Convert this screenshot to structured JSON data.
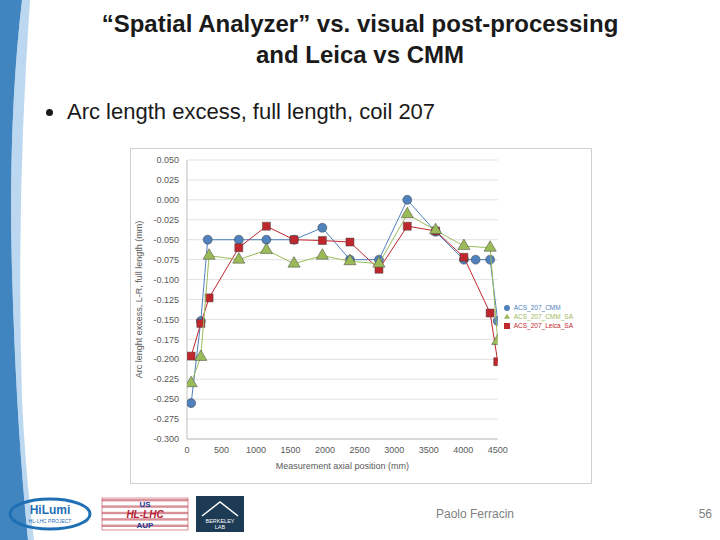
{
  "slide": {
    "title": [
      "“Spatial Analyzer” vs. visual post-processing",
      "and Leica vs CMM"
    ],
    "bullet": "Arc length excess, full length, coil 207",
    "author": "Paolo Ferracin",
    "page": "56",
    "logos": {
      "hilumi": [
        "HiLumi",
        "HL-LHC PROJECT"
      ],
      "us_aup": [
        "US",
        "HL-LHC",
        "AUP"
      ],
      "berkeley": [
        "BERKELEY",
        "LAB"
      ]
    }
  },
  "chart_data": {
    "type": "line",
    "x_label": "Measurement axial position (mm)",
    "y_label": "Arc lenght excess, L-R, full length (mm)",
    "xlim": [
      0,
      4500
    ],
    "xticks": [
      0,
      500,
      1000,
      1500,
      2000,
      2500,
      3000,
      3500,
      4000,
      4500
    ],
    "ylim": [
      -0.3,
      0.05
    ],
    "yticks": [
      {
        "value": 0.05,
        "label": "0.050"
      },
      {
        "value": 0.025,
        "label": "0.025"
      },
      {
        "value": 0,
        "label": "0.000"
      },
      {
        "value": -0.025,
        "label": "-0.025"
      },
      {
        "value": -0.05,
        "label": "-0.050"
      },
      {
        "value": -0.075,
        "label": "-0.075"
      },
      {
        "value": -0.1,
        "label": "-0.100"
      },
      {
        "value": -0.125,
        "label": "-0.125"
      },
      {
        "value": -0.15,
        "label": "-0.150"
      },
      {
        "value": -0.175,
        "label": "-0.175"
      },
      {
        "value": -0.2,
        "label": "-0.200"
      },
      {
        "value": -0.225,
        "label": "-0.225"
      },
      {
        "value": -0.25,
        "label": "-0.250"
      },
      {
        "value": -0.275,
        "label": "-0.275"
      },
      {
        "value": -0.3,
        "label": "-0.300"
      }
    ],
    "grid": true,
    "legend": "right",
    "series": [
      {
        "name": "ACS_207_CMM",
        "color": "#4f81bd",
        "marker": "circle",
        "x": [
          60,
          200,
          300,
          750,
          1150,
          1550,
          1960,
          2360,
          2780,
          3190,
          3600,
          4010,
          4180,
          4390,
          4500
        ],
        "values": [
          -0.255,
          -0.152,
          -0.05,
          -0.05,
          -0.05,
          -0.05,
          -0.035,
          -0.075,
          -0.075,
          0.0,
          -0.04,
          -0.075,
          -0.075,
          -0.075,
          -0.152
        ]
      },
      {
        "name": "ACS_207_Leica_SA",
        "color": "#c0272d",
        "marker": "square",
        "x": [
          60,
          200,
          320,
          750,
          1150,
          1550,
          1960,
          2360,
          2780,
          3190,
          3600,
          4010,
          4390,
          4500
        ],
        "values": [
          -0.196,
          -0.155,
          -0.123,
          -0.06,
          -0.033,
          -0.05,
          -0.051,
          -0.053,
          -0.087,
          -0.033,
          -0.039,
          -0.072,
          -0.142,
          -0.203
        ]
      },
      {
        "name": "ACS_207_CMM_SA",
        "color": "#9bbb59",
        "marker": "triangle",
        "x": [
          60,
          200,
          320,
          750,
          1150,
          1550,
          1960,
          2360,
          2780,
          3190,
          3600,
          4010,
          4390,
          4500
        ],
        "values": [
          -0.23,
          -0.197,
          -0.07,
          -0.075,
          -0.063,
          -0.08,
          -0.07,
          -0.077,
          -0.08,
          -0.018,
          -0.038,
          -0.058,
          -0.06,
          -0.177
        ]
      }
    ]
  }
}
